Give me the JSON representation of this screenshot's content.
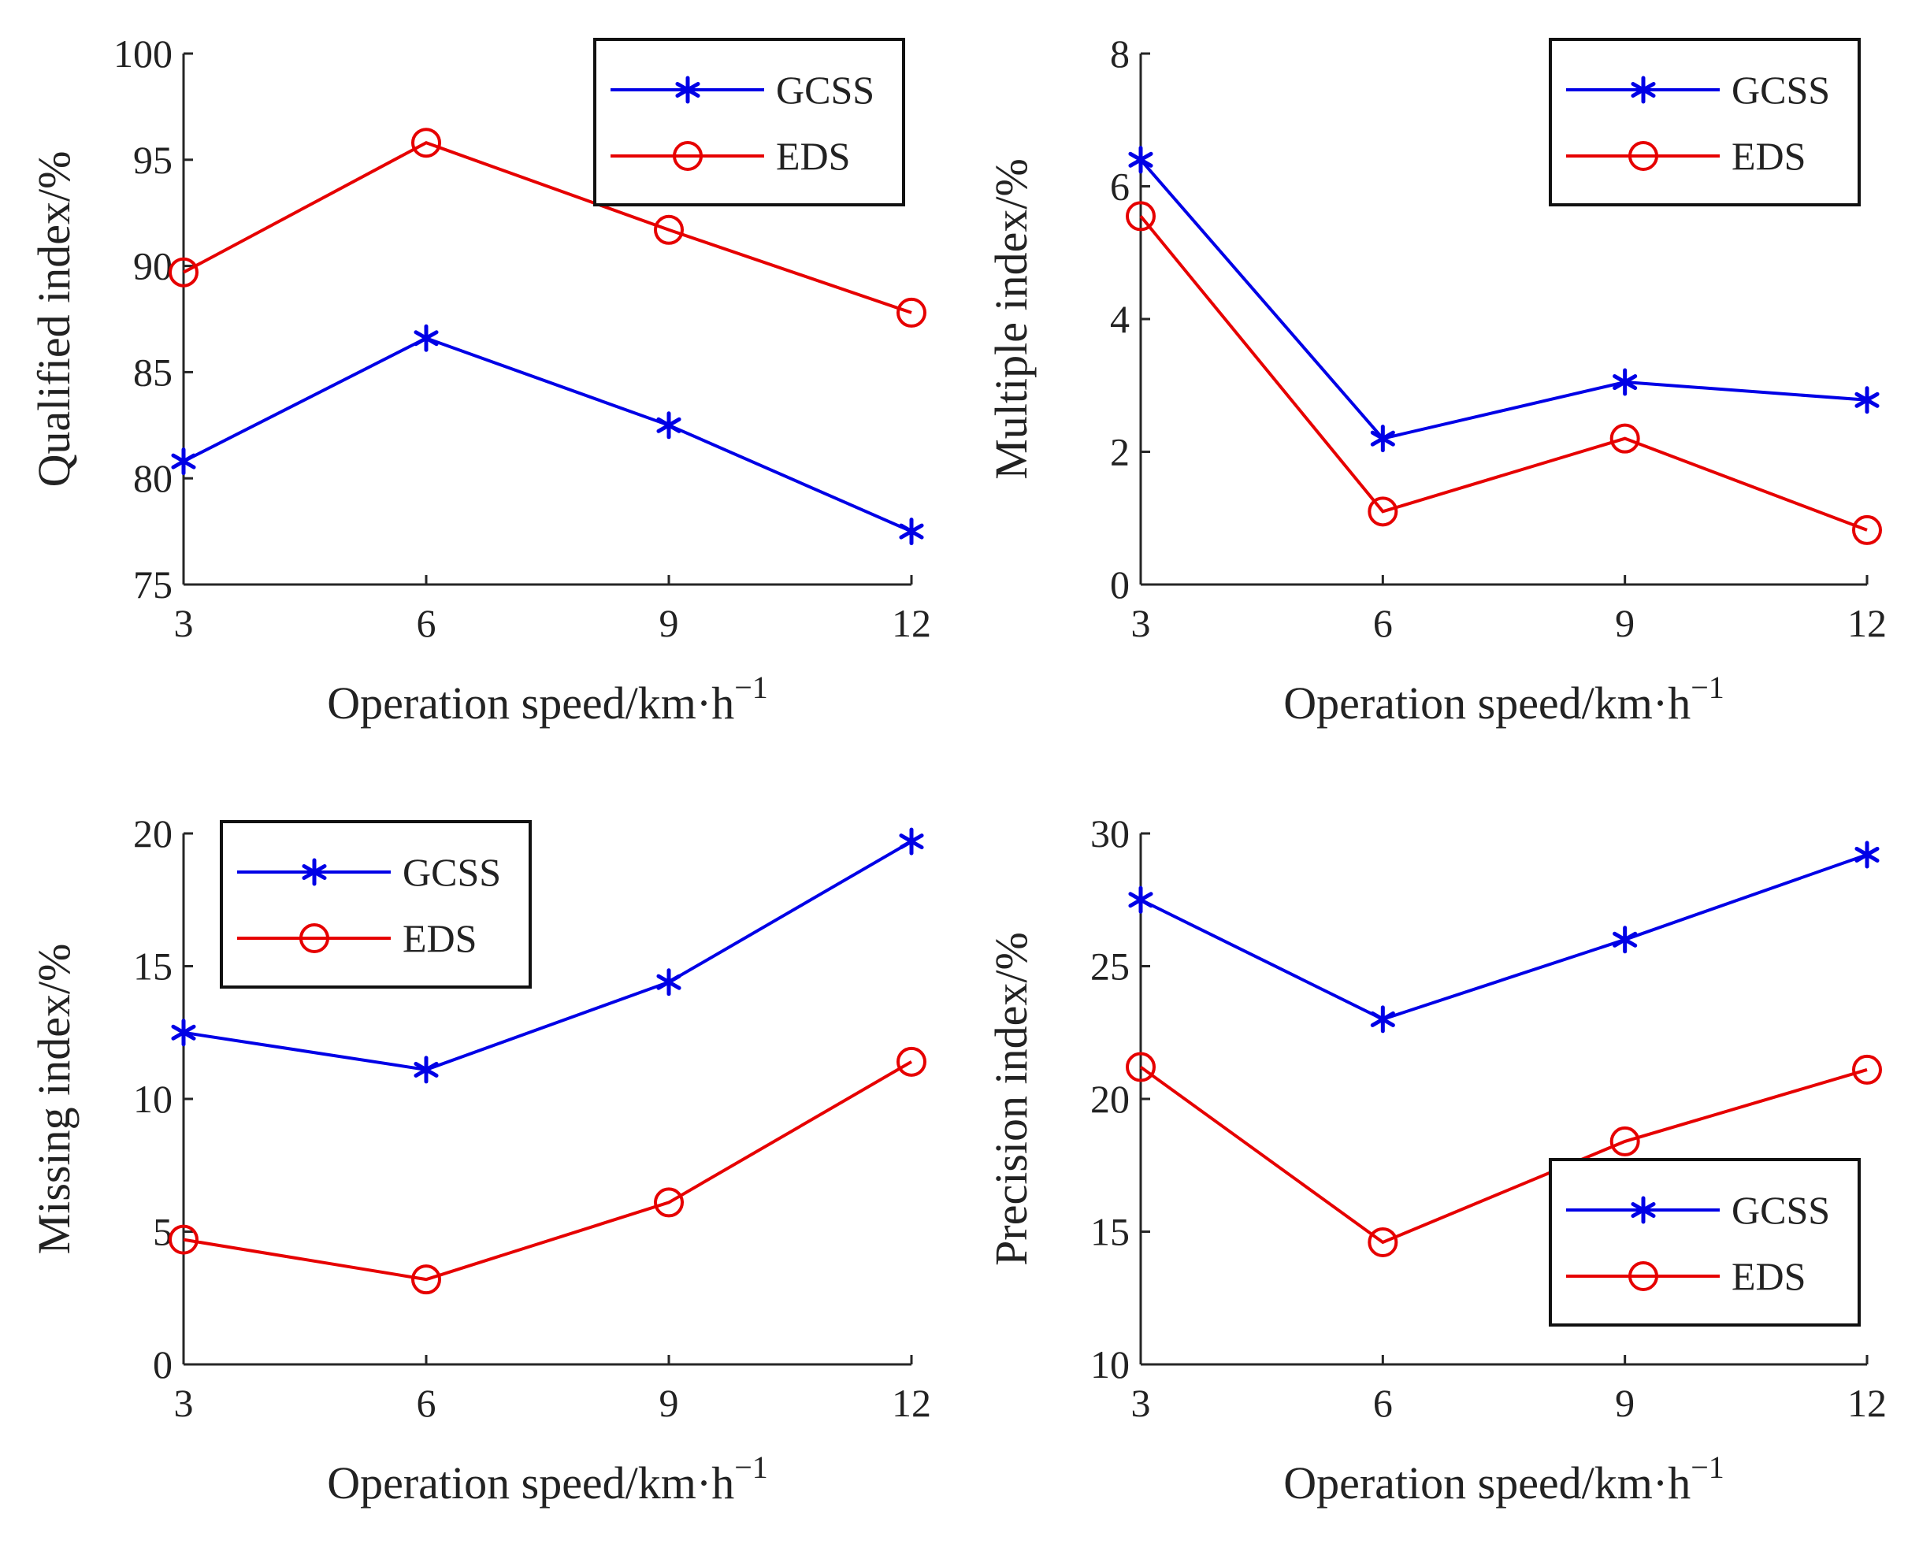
{
  "chart_data": [
    {
      "type": "line",
      "xlabel": "Operation speed/km·h",
      "xlabel_superscript": "−1",
      "ylabel": "Qualified index/%",
      "x": [
        3,
        6,
        9,
        12
      ],
      "xticks": [
        3,
        6,
        9,
        12
      ],
      "xlim": [
        3,
        12
      ],
      "yticks": [
        75,
        80,
        85,
        90,
        95,
        100
      ],
      "ylim": [
        75,
        100
      ],
      "legend_position": "top-right",
      "series": [
        {
          "name": "GCSS",
          "values": [
            80.8,
            86.6,
            82.5,
            77.5
          ],
          "color": "#0000e6",
          "marker": "asterisk"
        },
        {
          "name": "EDS",
          "values": [
            89.7,
            95.8,
            91.7,
            87.8
          ],
          "color": "#e60000",
          "marker": "circle"
        }
      ]
    },
    {
      "type": "line",
      "xlabel": "Operation speed/km·h",
      "xlabel_superscript": "−1",
      "ylabel": "Multiple index/%",
      "x": [
        3,
        6,
        9,
        12
      ],
      "xticks": [
        3,
        6,
        9,
        12
      ],
      "xlim": [
        3,
        12
      ],
      "yticks": [
        0,
        2,
        4,
        6,
        8
      ],
      "ylim": [
        0,
        8
      ],
      "legend_position": "top-right",
      "series": [
        {
          "name": "GCSS",
          "values": [
            6.4,
            2.2,
            3.05,
            2.78
          ],
          "color": "#0000e6",
          "marker": "asterisk"
        },
        {
          "name": "EDS",
          "values": [
            5.55,
            1.1,
            2.2,
            0.82
          ],
          "color": "#e60000",
          "marker": "circle"
        }
      ]
    },
    {
      "type": "line",
      "xlabel": "Operation speed/km·h",
      "xlabel_superscript": "−1",
      "ylabel": "Missing index/%",
      "x": [
        3,
        6,
        9,
        12
      ],
      "xticks": [
        3,
        6,
        9,
        12
      ],
      "xlim": [
        3,
        12
      ],
      "yticks": [
        0,
        5,
        10,
        15,
        20
      ],
      "ylim": [
        0,
        20
      ],
      "legend_position": "top-left",
      "series": [
        {
          "name": "GCSS",
          "values": [
            12.5,
            11.1,
            14.4,
            19.7
          ],
          "color": "#0000e6",
          "marker": "asterisk"
        },
        {
          "name": "EDS",
          "values": [
            4.7,
            3.2,
            6.1,
            11.4
          ],
          "color": "#e60000",
          "marker": "circle"
        }
      ]
    },
    {
      "type": "line",
      "xlabel": "Operation speed/km·h",
      "xlabel_superscript": "−1",
      "ylabel": "Precision index/%",
      "x": [
        3,
        6,
        9,
        12
      ],
      "xticks": [
        3,
        6,
        9,
        12
      ],
      "xlim": [
        3,
        12
      ],
      "yticks": [
        10,
        15,
        20,
        25,
        30
      ],
      "ylim": [
        10,
        30
      ],
      "legend_position": "bottom-right",
      "series": [
        {
          "name": "GCSS",
          "values": [
            27.5,
            23.0,
            26.0,
            29.2
          ],
          "color": "#0000e6",
          "marker": "asterisk"
        },
        {
          "name": "EDS",
          "values": [
            21.2,
            14.6,
            18.4,
            21.1
          ],
          "color": "#e60000",
          "marker": "circle"
        }
      ]
    }
  ]
}
